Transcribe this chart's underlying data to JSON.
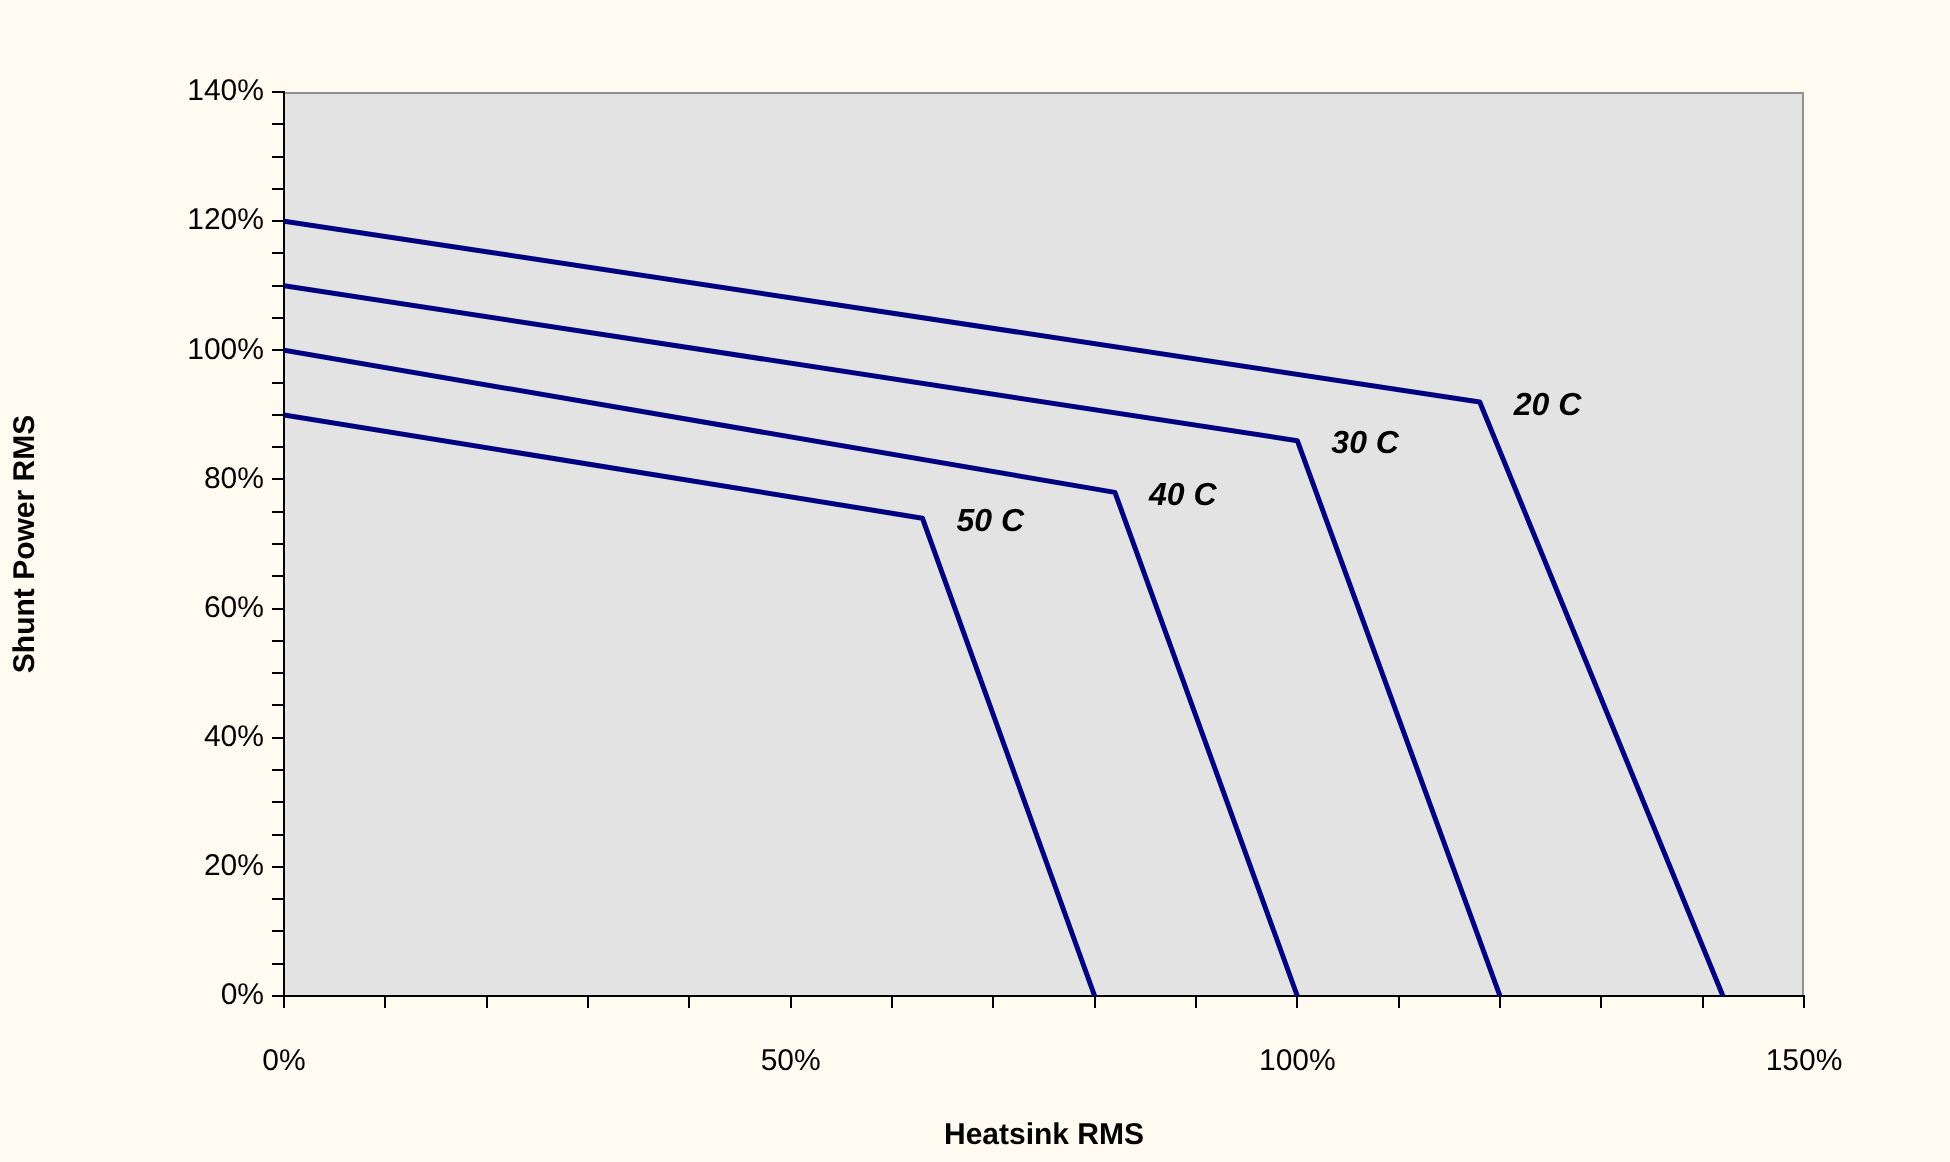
{
  "chart_data": {
    "type": "line",
    "xlabel": "Heatsink RMS",
    "ylabel": "Shunt Power RMS",
    "xlim": [
      0,
      150
    ],
    "ylim": [
      0,
      140
    ],
    "xticks": [
      {
        "value": 0,
        "label": "0%"
      },
      {
        "value": 10,
        "label": null
      },
      {
        "value": 20,
        "label": null
      },
      {
        "value": 30,
        "label": null
      },
      {
        "value": 40,
        "label": null
      },
      {
        "value": 50,
        "label": "50%"
      },
      {
        "value": 60,
        "label": null
      },
      {
        "value": 70,
        "label": null
      },
      {
        "value": 80,
        "label": null
      },
      {
        "value": 90,
        "label": null
      },
      {
        "value": 100,
        "label": "100%"
      },
      {
        "value": 110,
        "label": null
      },
      {
        "value": 120,
        "label": null
      },
      {
        "value": 130,
        "label": null
      },
      {
        "value": 140,
        "label": null
      },
      {
        "value": 150,
        "label": "150%"
      }
    ],
    "yticks": [
      {
        "value": 0,
        "label": "0%"
      },
      {
        "value": 5,
        "label": null
      },
      {
        "value": 10,
        "label": null
      },
      {
        "value": 15,
        "label": null
      },
      {
        "value": 20,
        "label": "20%"
      },
      {
        "value": 25,
        "label": null
      },
      {
        "value": 30,
        "label": null
      },
      {
        "value": 35,
        "label": null
      },
      {
        "value": 40,
        "label": "40%"
      },
      {
        "value": 45,
        "label": null
      },
      {
        "value": 50,
        "label": null
      },
      {
        "value": 55,
        "label": null
      },
      {
        "value": 60,
        "label": "60%"
      },
      {
        "value": 65,
        "label": null
      },
      {
        "value": 70,
        "label": null
      },
      {
        "value": 75,
        "label": null
      },
      {
        "value": 80,
        "label": "80%"
      },
      {
        "value": 85,
        "label": null
      },
      {
        "value": 90,
        "label": null
      },
      {
        "value": 95,
        "label": null
      },
      {
        "value": 100,
        "label": "100%"
      },
      {
        "value": 105,
        "label": null
      },
      {
        "value": 110,
        "label": null
      },
      {
        "value": 115,
        "label": null
      },
      {
        "value": 120,
        "label": "120%"
      },
      {
        "value": 125,
        "label": null
      },
      {
        "value": 130,
        "label": null
      },
      {
        "value": 135,
        "label": null
      },
      {
        "value": 140,
        "label": "140%"
      }
    ],
    "grid": false,
    "legend": false,
    "marker": "none",
    "line_style": "solid",
    "series": [
      {
        "name": "20 C",
        "color": "#000080",
        "x": [
          0,
          118,
          142
        ],
        "values": [
          120,
          92,
          0
        ]
      },
      {
        "name": "30 C",
        "color": "#000080",
        "x": [
          0,
          100,
          120
        ],
        "values": [
          110,
          86,
          0
        ]
      },
      {
        "name": "40 C",
        "color": "#000080",
        "x": [
          0,
          82,
          100
        ],
        "values": [
          100,
          78,
          0
        ]
      },
      {
        "name": "50 C",
        "color": "#000080",
        "x": [
          0,
          63,
          80
        ],
        "values": [
          90,
          74,
          0
        ]
      }
    ]
  }
}
